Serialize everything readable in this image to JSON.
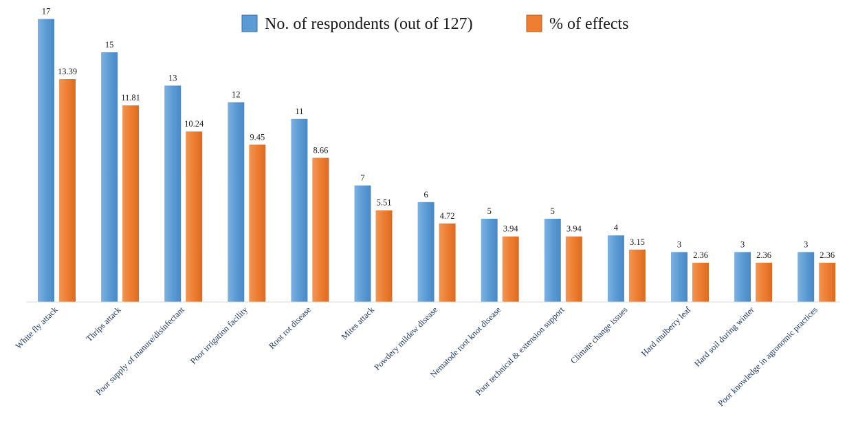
{
  "chart_data": {
    "type": "bar",
    "categories": [
      "White fly attack",
      "Thrips attack",
      "Poor supply of manure/disinfectant",
      "Poor irrigation facility",
      "Root rot disease",
      "Mites attack",
      "Powdery mildew disease",
      "Nematode root knot disease",
      "Poor technical & extension support",
      "Climate change issues",
      "Hard mulberry leaf",
      "Hard soil during winter",
      "Poor knowledge in agronomic practices"
    ],
    "series": [
      {
        "name": "No. of respondents (out of 127)",
        "color": "#5b9bd5",
        "values": [
          17,
          15,
          13,
          12,
          11,
          7,
          6,
          5,
          5,
          4,
          3,
          3,
          3
        ],
        "labels": [
          "17",
          "15",
          "13",
          "12",
          "11",
          "7",
          "6",
          "5",
          "5",
          "4",
          "3",
          "3",
          "3"
        ]
      },
      {
        "name": "% of effects",
        "color": "#ed7d31",
        "values": [
          13.39,
          11.81,
          10.24,
          9.45,
          8.66,
          5.51,
          4.72,
          3.94,
          3.94,
          3.15,
          2.36,
          2.36,
          2.36
        ],
        "labels": [
          "13.39",
          "11.81",
          "10.24",
          "9.45",
          "8.66",
          "5.51",
          "4.72",
          "3.94",
          "3.94",
          "3.15",
          "2.36",
          "2.36",
          "2.36"
        ]
      }
    ],
    "ylim": [
      0,
      17
    ],
    "grid": false,
    "legend_position": "top-center"
  }
}
